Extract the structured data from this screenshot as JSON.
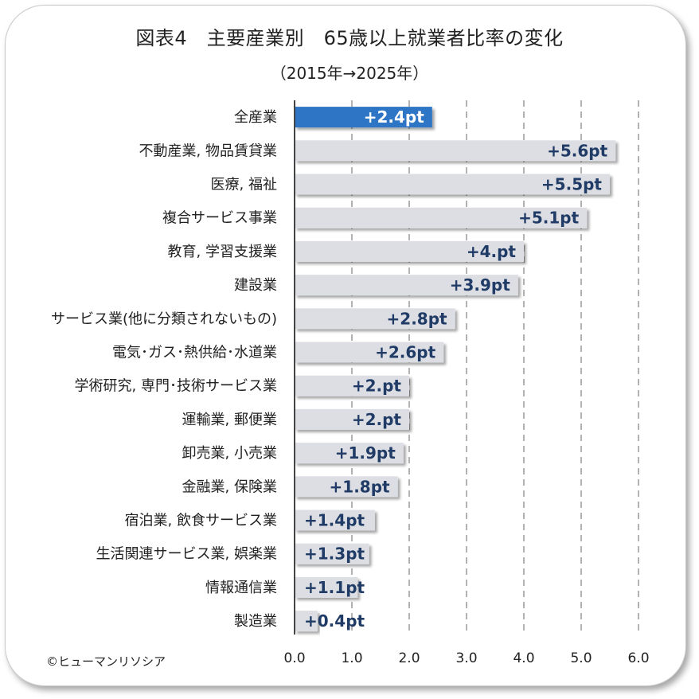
{
  "title": "図表4　主要産業別　65歳以上就業者比率の変化",
  "subtitle": "（2015年→2025年）",
  "copyright": "©ヒューマンリソシア",
  "colors": {
    "highlight": "#2e75c6",
    "bar": "#dcdee3",
    "label": "#1f3b66"
  },
  "chart_data": {
    "type": "bar",
    "orientation": "horizontal",
    "categories": [
      "全産業",
      "不動産業, 物品賃貸業",
      "医療, 福祉",
      "複合サービス事業",
      "教育, 学習支援業",
      "建設業",
      "サービス業(他に分類されないもの)",
      "電気･ガス･熱供給･水道業",
      "学術研究, 専門･技術サービス業",
      "運輸業, 郵便業",
      "卸売業, 小売業",
      "金融業, 保険業",
      "宿泊業, 飲食サービス業",
      "生活関連サービス業, 娯楽業",
      "情報通信業",
      "製造業"
    ],
    "values": [
      2.4,
      5.6,
      5.5,
      5.1,
      4.0,
      3.9,
      2.8,
      2.6,
      2.0,
      2.0,
      1.9,
      1.8,
      1.4,
      1.3,
      1.1,
      0.4
    ],
    "data_labels": [
      "+2.4pt",
      "+5.6pt",
      "+5.5pt",
      "+5.1pt",
      "+4.pt",
      "+3.9pt",
      "+2.8pt",
      "+2.6pt",
      "+2.pt",
      "+2.pt",
      "+1.9pt",
      "+1.8pt",
      "+1.4pt",
      "+1.3pt",
      "+1.1pt",
      "+0.4pt"
    ],
    "highlight_index": 0,
    "xlim": [
      0,
      6
    ],
    "xticks": [
      "0.0",
      "1.0",
      "2.0",
      "3.0",
      "4.0",
      "5.0",
      "6.0"
    ],
    "grid": "vertical-dashed",
    "legend": "none"
  }
}
